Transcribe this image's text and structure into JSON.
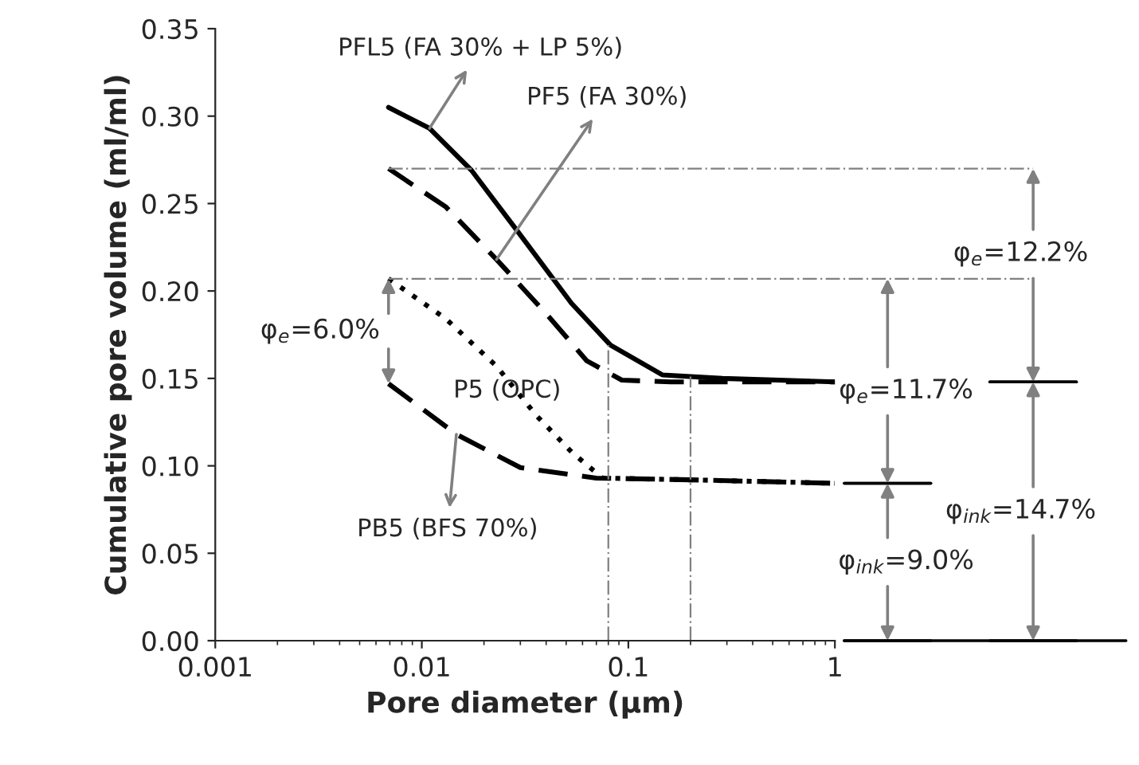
{
  "chart_data": {
    "type": "line",
    "xlabel": "Pore diameter (µm)",
    "ylabel": "Cumulative pore volume (ml/ml)",
    "log": "x",
    "xlim": [
      0.001,
      1
    ],
    "xticks": [
      0.001,
      0.01,
      0.1,
      1
    ],
    "ylim": [
      0,
      0.35
    ],
    "yticks": [
      {
        "value": 0,
        "label": "0.00"
      },
      {
        "value": 0.05,
        "label": "0.05"
      },
      {
        "value": 0.1,
        "label": "0.10"
      },
      {
        "value": 0.15,
        "label": "0.15"
      },
      {
        "value": 0.2,
        "label": "0.20"
      },
      {
        "value": 0.25,
        "label": "0.25"
      },
      {
        "value": 0.3,
        "label": "0.30"
      },
      {
        "value": 0.35,
        "label": "0.35"
      }
    ],
    "grid": false,
    "legend": false,
    "marker": "none",
    "series": [
      {
        "name": "PFL5 (FA 30% + LP 5%)",
        "color": "#000000",
        "line_style": "solid",
        "x": [
          0.0069,
          0.0109,
          0.0174,
          0.03,
          0.053,
          0.082,
          0.146,
          0.285,
          1
        ],
        "values": [
          0.305,
          0.293,
          0.269,
          0.232,
          0.193,
          0.169,
          0.152,
          0.15,
          0.148
        ]
      },
      {
        "name": "PF5 (FA 30%)",
        "color": "#000000",
        "line_style": "dashed",
        "x": [
          0.0069,
          0.0131,
          0.023,
          0.04,
          0.063,
          0.093,
          0.16,
          1
        ],
        "values": [
          0.27,
          0.248,
          0.218,
          0.187,
          0.16,
          0.149,
          0.148,
          0.148
        ]
      },
      {
        "name": "P5 (OPC)",
        "color": "#000000",
        "line_style": "dotted",
        "x": [
          0.0069,
          0.0131,
          0.023,
          0.0357,
          0.053,
          0.075,
          0.2,
          1
        ],
        "values": [
          0.207,
          0.184,
          0.157,
          0.129,
          0.108,
          0.093,
          0.092,
          0.09
        ]
      },
      {
        "name": "PB5 (BFS 70%)",
        "color": "#000000",
        "line_style": "dashed",
        "x": [
          0.0069,
          0.0147,
          0.03,
          0.07,
          0.2,
          1
        ],
        "values": [
          0.147,
          0.118,
          0.099,
          0.093,
          0.092,
          0.09
        ]
      }
    ],
    "ref_lines": [
      {
        "axis": "y",
        "value": 0.27,
        "color": "#808080",
        "line_style": "dashdot"
      },
      {
        "axis": "y",
        "value": 0.207,
        "color": "#808080",
        "line_style": "dashdot"
      },
      {
        "axis": "x",
        "value": 0.08,
        "color": "#808080",
        "line_style": "dashdot"
      },
      {
        "axis": "x",
        "value": 0.2,
        "color": "#808080",
        "line_style": "dashdot"
      }
    ],
    "annotations": [
      "φ$_{e}$=6.0%",
      "φ$_{e}$=11.7%",
      "φ$_{ink}$=9.0%",
      "φ$_{e}$=12.2%",
      "φ$_{ink}$=14.7%"
    ]
  }
}
